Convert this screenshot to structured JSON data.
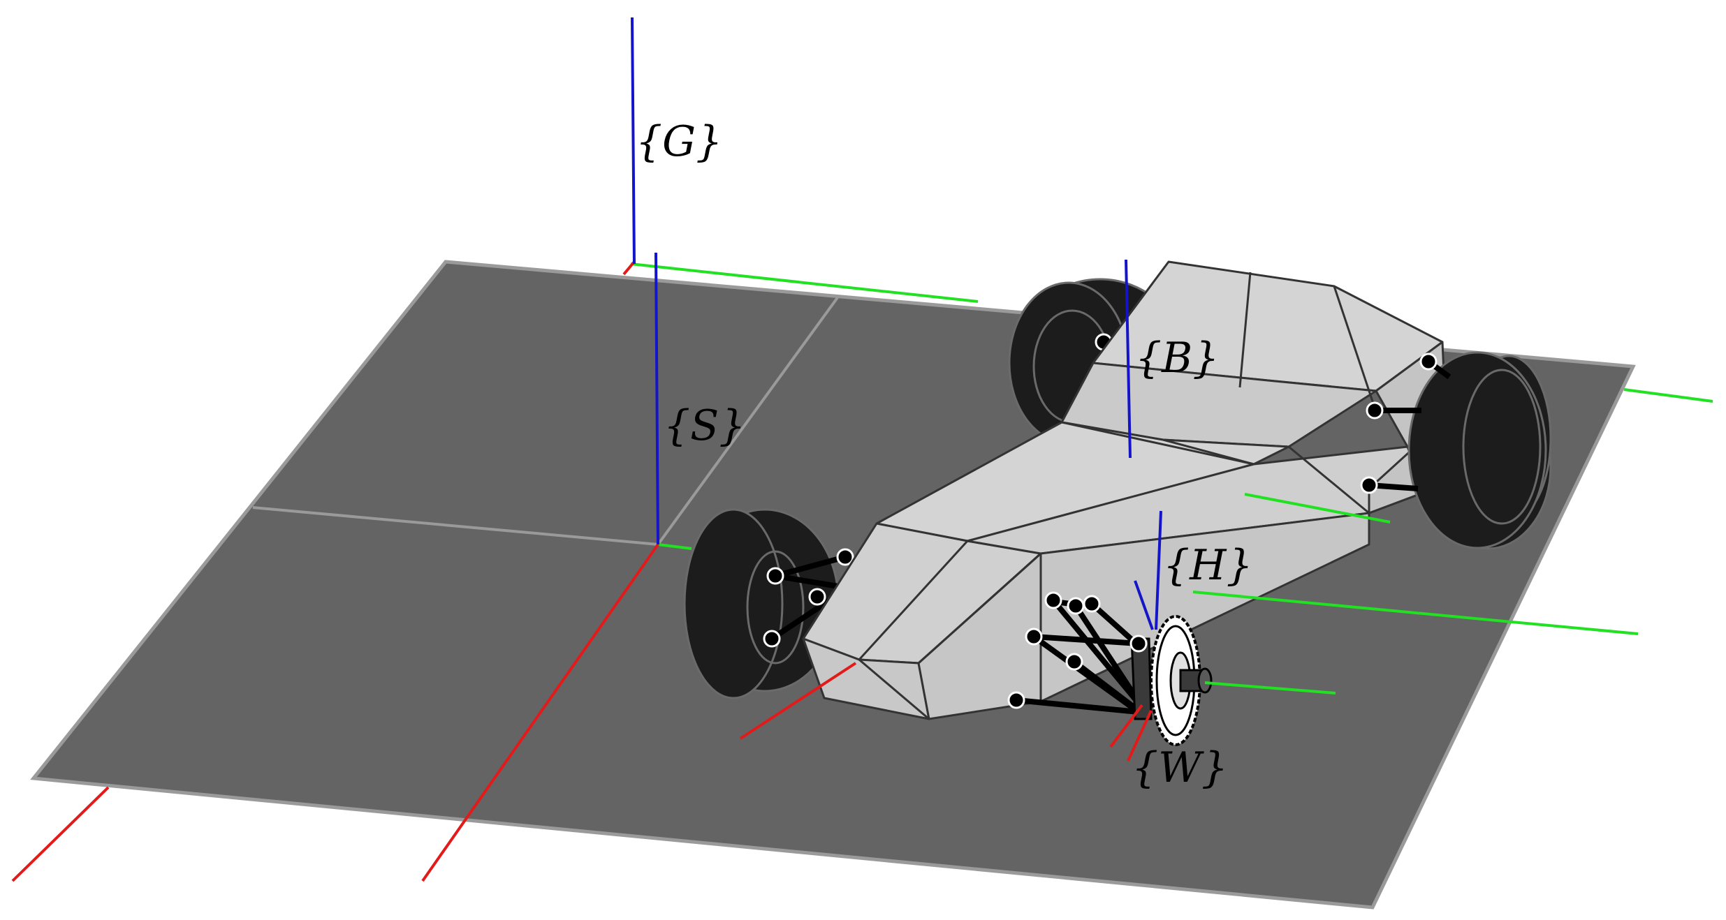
{
  "frames": {
    "G": "{G}",
    "S": "{S}",
    "B": "{B}",
    "H": "{H}",
    "W": "{W}"
  },
  "colors": {
    "background": "#ffffff",
    "ground": "#646464",
    "ground_edge": "#9a9a9a",
    "chassis": "#d4d4d4",
    "chassis_edge": "#333333",
    "tire": "#1c1c1c",
    "tire_edge": "#6a6a6a",
    "axis_x": "#e31a1a",
    "axis_y": "#22e022",
    "axis_z": "#1414c8",
    "joint": "#000000"
  }
}
